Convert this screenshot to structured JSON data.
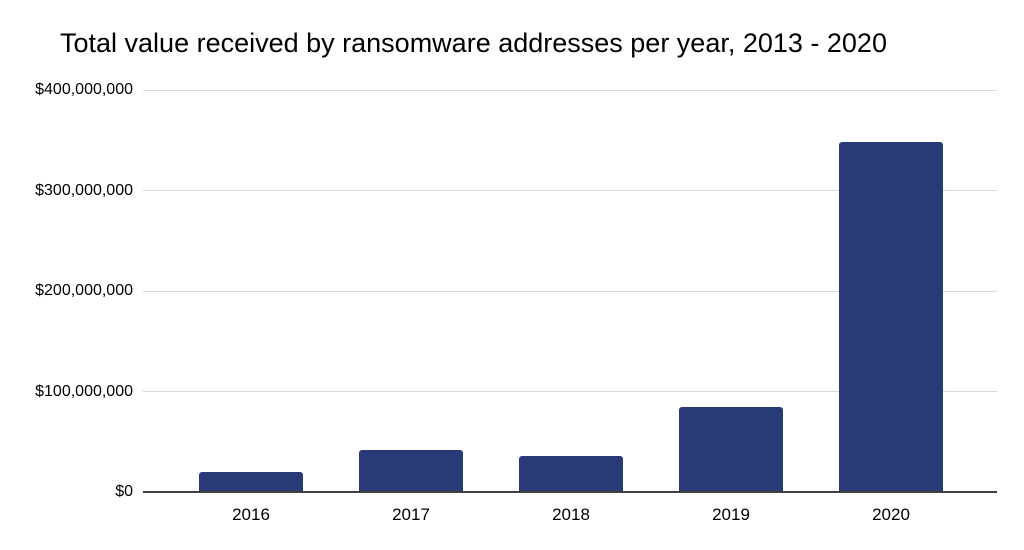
{
  "chart_data": {
    "type": "bar",
    "title": "Total value received by ransomware addresses per year, 2013 - 2020",
    "categories": [
      "2016",
      "2017",
      "2018",
      "2019",
      "2020"
    ],
    "values": [
      20000000,
      42000000,
      36000000,
      85000000,
      348000000
    ],
    "xlabel": "",
    "ylabel": "",
    "ylim": [
      0,
      400000000
    ],
    "ytick_values": [
      0,
      100000000,
      200000000,
      300000000,
      400000000
    ],
    "ytick_labels": [
      "$0",
      "$100,000,000",
      "$200,000,000",
      "$300,000,000",
      "$400,000,000"
    ],
    "grid": "horizontal",
    "legend": "none",
    "colors": {
      "bar": "#283a78",
      "gridline": "#d9d9d9",
      "axis_line": "#404040",
      "text": "#000000",
      "background": "#ffffff"
    }
  }
}
